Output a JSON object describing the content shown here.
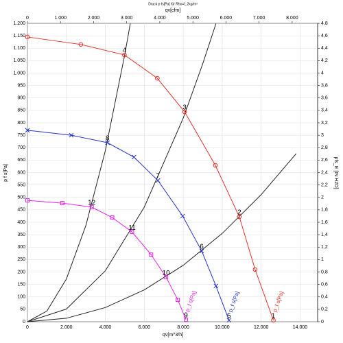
{
  "chart_data": {
    "type": "line",
    "title": "Druck p fs[Pa] für Rho=1,2kg/m³",
    "x_label": "qv[m^3/h]",
    "x2_label": "qv[cfm]",
    "y_label": "p f s[Pa]",
    "y2_label": "pfs_E [IN H2O]",
    "xlim": [
      0,
      14900
    ],
    "x2lim": [
      0,
      8770
    ],
    "ylim": [
      0,
      1200
    ],
    "y2lim": [
      0,
      4.8
    ],
    "grid": true,
    "xticks": [
      0,
      {
        "value": 2000,
        "label": "2.000"
      },
      {
        "value": 4000,
        "label": "4.000"
      },
      {
        "value": 6000,
        "label": "6.000"
      },
      {
        "value": 8000,
        "label": "8.000"
      },
      {
        "value": 10000,
        "label": "10.000"
      },
      {
        "value": 12000,
        "label": "12.000"
      },
      {
        "value": 14000,
        "label": "14.000"
      }
    ],
    "x2ticks": [
      0,
      {
        "value": 1000,
        "label": "1.000"
      },
      {
        "value": 2000,
        "label": "2.000"
      },
      {
        "value": 3000,
        "label": "3.000"
      },
      {
        "value": 4000,
        "label": "4.000"
      },
      {
        "value": 5000,
        "label": "5.000"
      },
      {
        "value": 6000,
        "label": "6.000"
      },
      {
        "value": 7000,
        "label": "7.000"
      },
      {
        "value": 8000,
        "label": "8.000"
      }
    ],
    "yticks": [
      0,
      50,
      100,
      150,
      200,
      250,
      300,
      350,
      400,
      450,
      500,
      550,
      600,
      650,
      700,
      750,
      800,
      850,
      900,
      950,
      {
        "value": 1000,
        "label": "1.000"
      },
      {
        "value": 1050,
        "label": "1.050"
      },
      {
        "value": 1100,
        "label": "1.100"
      },
      {
        "value": 1150,
        "label": "1.150"
      },
      {
        "value": 1200,
        "label": "1.200"
      }
    ],
    "y2ticks": [
      0,
      {
        "value": 0.2,
        "label": "0,2"
      },
      {
        "value": 0.4,
        "label": "0,4"
      },
      {
        "value": 0.6,
        "label": "0,6"
      },
      {
        "value": 0.8,
        "label": "0,8"
      },
      1,
      {
        "value": 1.2,
        "label": "1,2"
      },
      {
        "value": 1.4,
        "label": "1,4"
      },
      {
        "value": 1.6,
        "label": "1,6"
      },
      {
        "value": 1.8,
        "label": "1,8"
      },
      2,
      {
        "value": 2.2,
        "label": "2,2"
      },
      {
        "value": 2.4,
        "label": "2,4"
      },
      {
        "value": 2.6,
        "label": "2,6"
      },
      {
        "value": 2.8,
        "label": "2,8"
      },
      3,
      {
        "value": 3.2,
        "label": "3,2"
      },
      {
        "value": 3.4,
        "label": "3,4"
      },
      {
        "value": 3.6,
        "label": "3,6"
      },
      {
        "value": 3.8,
        "label": "3,8"
      },
      4,
      {
        "value": 4.2,
        "label": "4,2"
      },
      {
        "value": 4.4,
        "label": "4,4"
      },
      {
        "value": 4.6,
        "label": "4,6"
      },
      {
        "value": 4.8,
        "label": "4,8"
      }
    ],
    "series": [
      {
        "name": "p_f s[Pa]",
        "color": "#e8302a",
        "marker": "circle",
        "x": [
          0,
          2740,
          4980,
          6670,
          8070,
          9650,
          10880,
          11690,
          12630
        ],
        "values": [
          1145,
          1115,
          1073,
          979,
          844,
          629,
          422,
          210,
          6
        ]
      },
      {
        "name": "p_f s[Pa]",
        "color": "#2233cc",
        "marker": "x",
        "x": [
          0,
          2250,
          4110,
          5470,
          6700,
          7970,
          8950,
          9680,
          10350
        ],
        "values": [
          770,
          750,
          720,
          662,
          568,
          425,
          284,
          144,
          6
        ]
      },
      {
        "name": "p_f s[Pa]",
        "color": "#ee22ee",
        "marker": "square",
        "x": [
          0,
          1790,
          3300,
          4350,
          5370,
          6350,
          7120,
          7720,
          8140
        ],
        "values": [
          488,
          477,
          461,
          419,
          361,
          270,
          179,
          88,
          8
        ]
      }
    ],
    "system_curves": [
      {
        "color": "#222222",
        "x": [
          0,
          1000,
          2000,
          3000,
          4000,
          5000,
          5280
        ],
        "values": [
          0,
          43,
          172,
          387,
          688,
          1075,
          1199
        ]
      },
      {
        "color": "#222222",
        "x": [
          0,
          2000,
          4000,
          6000,
          8000,
          9000,
          9680
        ],
        "values": [
          0,
          51,
          205,
          461,
          819,
          1037,
          1199
        ]
      },
      {
        "color": "#222222",
        "x": [
          0,
          2000,
          4000,
          6000,
          8000,
          10000,
          12000,
          13800
        ],
        "values": [
          0,
          14,
          57,
          128,
          227,
          355,
          511,
          676
        ]
      }
    ],
    "operating_points": [
      {
        "label": "1",
        "x": 12630,
        "y": 6
      },
      {
        "label": "2",
        "x": 10880,
        "y": 422
      },
      {
        "label": "3",
        "x": 8070,
        "y": 844
      },
      {
        "label": "4",
        "x": 4980,
        "y": 1073
      },
      {
        "label": "5",
        "x": 10350,
        "y": 6
      },
      {
        "label": "6",
        "x": 8950,
        "y": 284
      },
      {
        "label": "7",
        "x": 6700,
        "y": 568
      },
      {
        "label": "8",
        "x": 4110,
        "y": 720
      },
      {
        "label": "9",
        "x": 8140,
        "y": 8
      },
      {
        "label": "10",
        "x": 7120,
        "y": 179
      },
      {
        "label": "11",
        "x": 5370,
        "y": 361
      },
      {
        "label": "12",
        "x": 3300,
        "y": 461
      }
    ]
  }
}
